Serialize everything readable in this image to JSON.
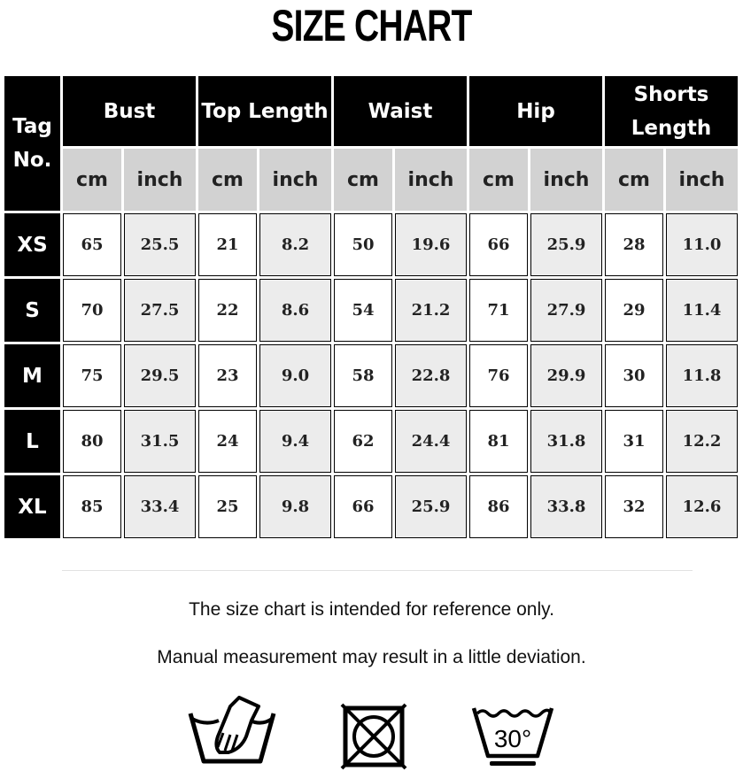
{
  "title": "SIZE CHART",
  "table": {
    "tag_header": "Tag No.",
    "groups": [
      "Bust",
      "Top Length",
      "Waist",
      "Hip",
      "Shorts Length"
    ],
    "units": [
      "cm",
      "inch"
    ],
    "rows": [
      {
        "tag": "XS",
        "values": [
          "65",
          "25.5",
          "21",
          "8.2",
          "50",
          "19.6",
          "66",
          "25.9",
          "28",
          "11.0"
        ]
      },
      {
        "tag": "S",
        "values": [
          "70",
          "27.5",
          "22",
          "8.6",
          "54",
          "21.2",
          "71",
          "27.9",
          "29",
          "11.4"
        ]
      },
      {
        "tag": "M",
        "values": [
          "75",
          "29.5",
          "23",
          "9.0",
          "58",
          "22.8",
          "76",
          "29.9",
          "30",
          "11.8"
        ]
      },
      {
        "tag": "L",
        "values": [
          "80",
          "31.5",
          "24",
          "9.4",
          "62",
          "24.4",
          "81",
          "31.8",
          "31",
          "12.2"
        ]
      },
      {
        "tag": "XL",
        "values": [
          "85",
          "33.4",
          "25",
          "9.8",
          "66",
          "25.9",
          "86",
          "33.8",
          "32",
          "12.6"
        ]
      }
    ]
  },
  "notes": [
    "The size chart is intended for reference only.",
    "Manual measurement may result in a little deviation."
  ],
  "care_icons": [
    {
      "name": "hand-wash-icon"
    },
    {
      "name": "do-not-tumble-dry-icon"
    },
    {
      "name": "wash-30-icon",
      "label": "30°"
    }
  ]
}
